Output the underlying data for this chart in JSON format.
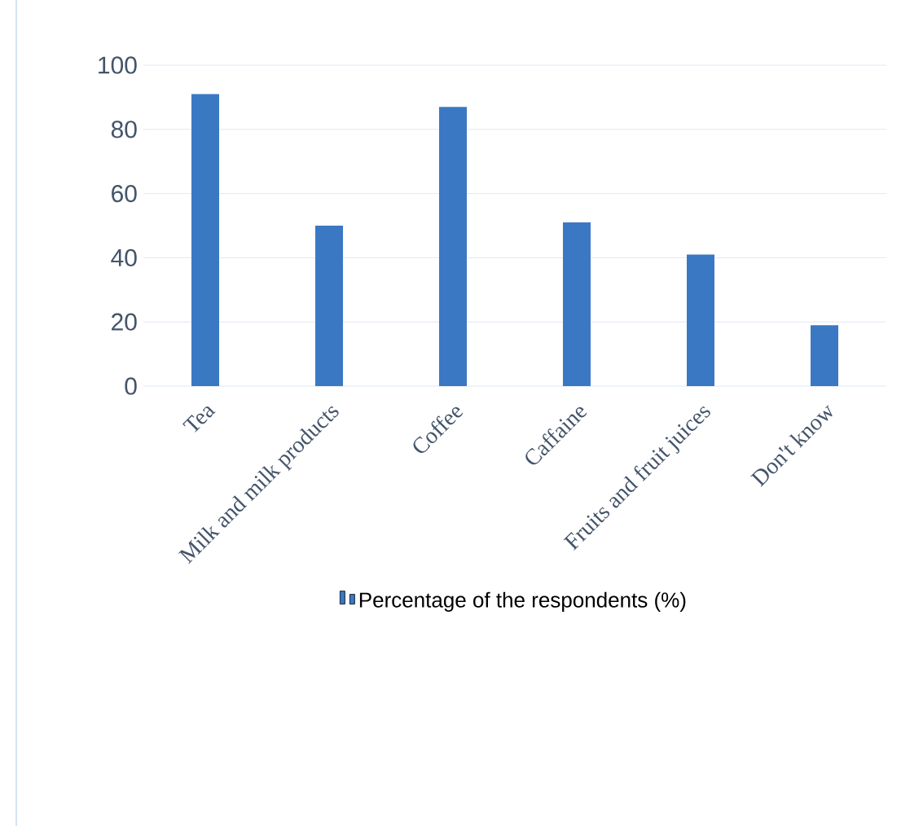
{
  "chart_data": {
    "type": "bar",
    "categories": [
      "Tea",
      "Milk and milk products",
      "Coffee",
      "Caffaine",
      "Fruits and fruit juices",
      "Don't know"
    ],
    "series": [
      {
        "name": "Percentage of the respondents (%)",
        "color": "#3a78c4",
        "values": [
          91,
          50,
          87,
          51,
          41,
          19
        ]
      }
    ],
    "ylim": [
      0,
      100
    ],
    "yticks": [
      0,
      20,
      40,
      60,
      80,
      100
    ],
    "grid": "y",
    "legend": "bottom"
  }
}
